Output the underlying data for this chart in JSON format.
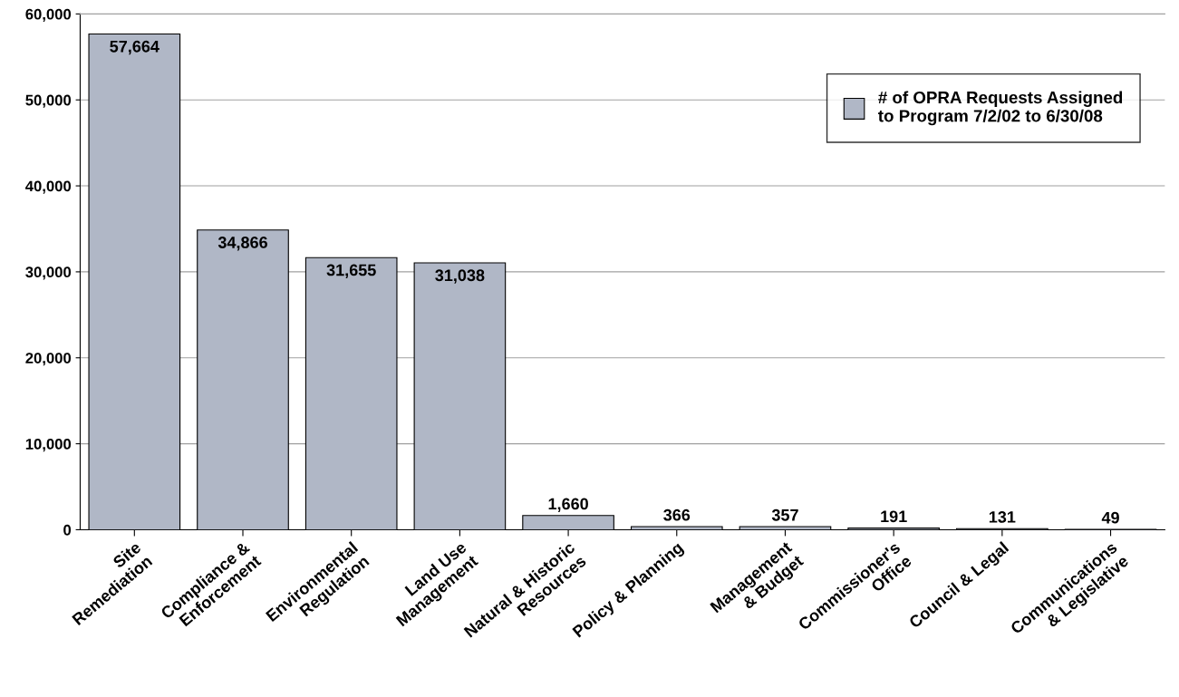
{
  "chart_data": {
    "type": "bar",
    "categories": [
      "Site\nRemediation",
      "Compliance &\nEnforcement",
      "Environmental\nRegulation",
      "Land Use\nManagement",
      "Natural & Historic\nResources",
      "Policy & Planning",
      "Management\n& Budget",
      "Commissioner's\nOffice",
      "Council & Legal",
      "Communications\n& Legislative"
    ],
    "series": [
      {
        "name": "# of OPRA Requests Assigned\nto Program 7/2/02 to 6/30/08",
        "color": "#b0b7c6",
        "values": [
          57664,
          34866,
          31655,
          31038,
          1660,
          366,
          357,
          191,
          131,
          49
        ],
        "value_labels": [
          "57,664",
          "34,866",
          "31,655",
          "31,038",
          "1,660",
          "366",
          "357",
          "191",
          "131",
          "49"
        ]
      }
    ],
    "ylim": [
      0,
      60000
    ],
    "yticks": [
      0,
      {
        "value": 10000,
        "label": "10,000"
      },
      {
        "value": 20000,
        "label": "20,000"
      },
      {
        "value": 30000,
        "label": "30,000"
      },
      {
        "value": 40000,
        "label": "40,000"
      },
      {
        "value": 50000,
        "label": "50,000"
      },
      {
        "value": 60000,
        "label": "60,000"
      }
    ],
    "grid": "y",
    "legend": "top right"
  }
}
